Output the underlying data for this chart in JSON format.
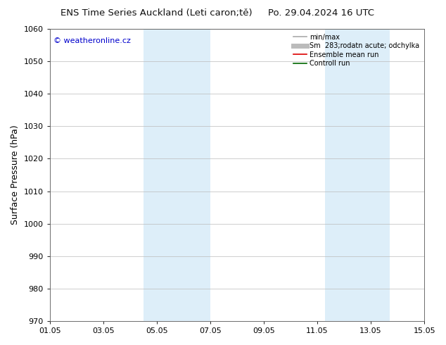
{
  "title_left": "ENS Time Series Auckland (Leti caron;tě)",
  "title_right": "Po. 29.04.2024 16 UTC",
  "ylabel": "Surface Pressure (hPa)",
  "ylim": [
    970,
    1060
  ],
  "yticks": [
    970,
    980,
    990,
    1000,
    1010,
    1020,
    1030,
    1040,
    1050,
    1060
  ],
  "xtick_labels": [
    "01.05",
    "03.05",
    "05.05",
    "07.05",
    "09.05",
    "11.05",
    "13.05",
    "15.05"
  ],
  "xtick_positions": [
    0,
    2,
    4,
    6,
    8,
    10,
    12,
    14
  ],
  "xlim": [
    0,
    14
  ],
  "shaded_bands": [
    {
      "x_start": 3.5,
      "x_end": 6.0,
      "color": "#ddeef9"
    },
    {
      "x_start": 10.3,
      "x_end": 11.0,
      "color": "#ddeef9"
    },
    {
      "x_start": 11.0,
      "x_end": 12.7,
      "color": "#ddeef9"
    }
  ],
  "watermark_text": "© weatheronline.cz",
  "watermark_color": "#0000cc",
  "legend_entries": [
    {
      "label": "min/max",
      "color": "#aaaaaa",
      "lw": 1.2
    },
    {
      "label": "Sm  283;rodatn acute; odchylka",
      "color": "#bbbbbb",
      "lw": 5
    },
    {
      "label": "Ensemble mean run",
      "color": "#dd0000",
      "lw": 1.2
    },
    {
      "label": "Controll run",
      "color": "#006600",
      "lw": 1.2
    }
  ],
  "bg_color": "#ffffff",
  "plot_bg_color": "#ffffff",
  "grid_color": "#bbbbbb",
  "title_fontsize": 9.5,
  "tick_fontsize": 8,
  "label_fontsize": 9,
  "watermark_fontsize": 8
}
